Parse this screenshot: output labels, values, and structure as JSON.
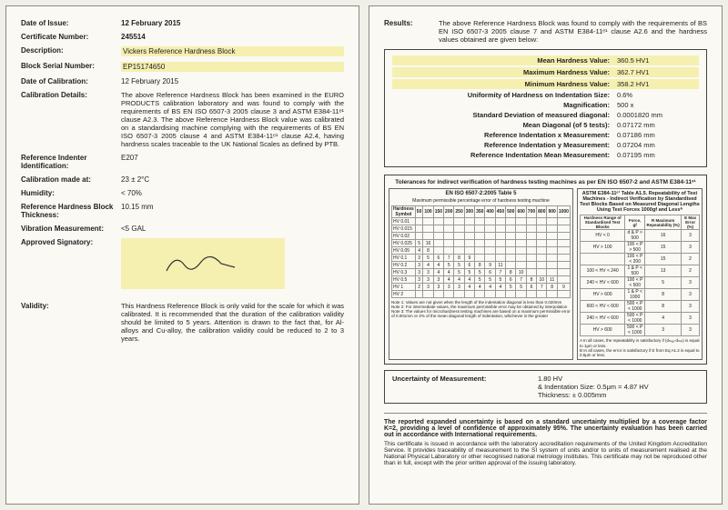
{
  "left": {
    "issue_lbl": "Date of Issue:",
    "issue_val": "12 February 2015",
    "cert_lbl": "Certificate Number:",
    "cert_val": "245514",
    "desc_lbl": "Description:",
    "desc_val": "Vickers Reference Hardness Block",
    "serial_lbl": "Block Serial Number:",
    "serial_val": "EP15174650",
    "calib_date_lbl": "Date of Calibration:",
    "calib_date_val": "12 February 2015",
    "calib_det_lbl": "Calibration Details:",
    "calib_det_val": "The above Reference Hardness Block has been examined in the EURO PRODUCTS calibration laboratory and was found to comply with the requirements of BS EN ISO 6507-3 2005 clause 3 and ASTM E384-11ᵉ¹ clause A2.3. The above Reference Hardness Block value was calibrated on a standardising machine complying with the requirements of BS EN ISO 6507-3 2005 clause 4 and ASTM E384-11ᵉ¹ clause A2.4, having hardness scales traceable to the UK National Scales as defined by PTB.",
    "indenter_lbl": "Reference Indenter Identification:",
    "indenter_val": "E207",
    "calib_at_lbl": "Calibration made at:",
    "calib_at_val": "23 ± 2°C",
    "humidity_lbl": "Humidity:",
    "humidity_val": "< 70%",
    "thick_lbl": "Reference Hardness Block Thickness:",
    "thick_val": "10.15 mm",
    "vib_lbl": "Vibration Measurement:",
    "vib_val": "<5 GAL",
    "sig_lbl": "Approved Signatory:",
    "valid_lbl": "Validity:",
    "valid_val": "This Hardness Reference Block is only valid for the scale for which it was calibrated. It is recommended that the duration of the calibration validity should be limited to 5 years. Attention is drawn to the fact that, for Al-alloys and Cu-alloy, the calibration validity could be reduced to 2 to 3 years."
  },
  "right": {
    "results_lbl": "Results:",
    "results_intro": "The above Reference Hardness Block was found to comply with the requirements of BS EN ISO 6507-3 2005 clause 7 and ASTM E384-11ᵉ¹ clause A2.6 and the hardness values obtained are given below:",
    "mean_lbl": "Mean Hardness Value:",
    "mean_val": "360.5   HV1",
    "max_lbl": "Maximum Hardness Value:",
    "max_val": "362.7   HV1",
    "min_lbl": "Minimum Hardness Value:",
    "min_val": "358.2   HV1",
    "uniform_lbl": "Uniformity of Hardness on Indentation Size:",
    "uniform_val": "0.6%",
    "mag_lbl": "Magnification:",
    "mag_val": "500 x",
    "stdev_lbl": "Standard Deviation of measured diagonal:",
    "stdev_val": "0.0001820 mm",
    "meandiag_lbl": "Mean Diagonal (of 5 tests):",
    "meandiag_val": "0.07172 mm",
    "refx_lbl": "Reference Indentation x Measurement:",
    "refx_val": "0.07186 mm",
    "refy_lbl": "Reference Indentation y Measurement:",
    "refy_val": "0.07204 mm",
    "refmean_lbl": "Reference Indentation Mean Measurement:",
    "refmean_val": "0.07195 mm",
    "tol_title": "Tolerances for indirect verification of hardness testing machines as per EN ISO 6507-2 and ASTM E384-11ᵉ¹",
    "tol_left_title": "EN ISO 6507-2:2005 Table 5",
    "tol_left_sub": "Maximum permissible percentage error of hardness testing machine",
    "tol_right_title": "ASTM E384-11ᵉ¹ Table A1.5. Repeatability of Test Machines - Indirect Verification by Standardised Test Blocks Based on Measured Diagonal Lengths Using Test Forces 1000gf and Lessᴬ",
    "tol_left_rows": [
      "HV 0.01",
      "HV 0.015",
      "HV 0.02",
      "HV 0.025",
      "HV 0.05",
      "HV 0.1",
      "HV 0.2",
      "HV 0.3",
      "HV 0.5",
      "HV 1",
      "HV 2"
    ],
    "tol_left_cols": [
      "50",
      "100",
      "150",
      "200",
      "250",
      "300",
      "350",
      "400",
      "450",
      "500",
      "600",
      "700",
      "800",
      "900",
      "1000"
    ],
    "tol_left_data": [
      [
        "",
        "",
        "",
        "",
        "",
        "",
        "",
        "",
        "",
        "",
        "",
        "",
        "",
        "",
        ""
      ],
      [
        "",
        "",
        "",
        "",
        "",
        "",
        "",
        "",
        "",
        "",
        "",
        "",
        "",
        "",
        ""
      ],
      [
        "",
        "",
        "",
        "",
        "",
        "",
        "",
        "",
        "",
        "",
        "",
        "",
        "",
        "",
        ""
      ],
      [
        "5",
        "16",
        "",
        "",
        "",
        "",
        "",
        "",
        "",
        "",
        "",
        "",
        "",
        "",
        ""
      ],
      [
        "4",
        "8",
        "",
        "",
        "",
        "",
        "",
        "",
        "",
        "",
        "",
        "",
        "",
        "",
        ""
      ],
      [
        "3",
        "5",
        "6",
        "7",
        "8",
        "9",
        "",
        "",
        "",
        "",
        "",
        "",
        "",
        "",
        ""
      ],
      [
        "3",
        "4",
        "4",
        "5",
        "5",
        "6",
        "8",
        "9",
        "11",
        "",
        "",
        "",
        "",
        "",
        ""
      ],
      [
        "3",
        "3",
        "4",
        "4",
        "5",
        "5",
        "5",
        "6",
        "7",
        "8",
        "10",
        "",
        "",
        "",
        ""
      ],
      [
        "3",
        "3",
        "3",
        "4",
        "4",
        "4",
        "5",
        "5",
        "5",
        "6",
        "7",
        "8",
        "10",
        "11",
        ""
      ],
      [
        "2",
        "3",
        "3",
        "3",
        "3",
        "4",
        "4",
        "4",
        "4",
        "5",
        "5",
        "6",
        "7",
        "8",
        "9"
      ],
      [
        "",
        "",
        "",
        "",
        "",
        "",
        "",
        "",
        "",
        "",
        "",
        "",
        "",
        "",
        ""
      ]
    ],
    "tol_left_notes": "Note 1: Values are not given when the length of the indentation diagonal is less than 0.020mm\nNote 2: For intermediate values, the maximum permissible error may be obtained by interpolation\nNote 3: The values for microhardness testing machines are based on a maximum permissible error of 0.001mm or 2% of the mean diagonal length of indentation, whichever is the greater",
    "tol_right_rows": [
      [
        "HV < 0",
        "d & P > 500",
        "16",
        "3"
      ],
      [
        "HV > 100",
        "100 < P > 500",
        "15",
        "3"
      ],
      [
        "",
        "100 < P < 200",
        "15",
        "2"
      ],
      [
        "100 < HV < 240",
        "1 & P < 500",
        "13",
        "2"
      ],
      [
        "240 < HV < 600",
        "100 < P < 500",
        "5",
        "3"
      ],
      [
        "HV > 600",
        "1 & P < 1000",
        "8",
        "3"
      ],
      [
        "600 < HV < 600",
        "500 < P < 1000",
        "8",
        "3"
      ],
      [
        "240 < HV < 600",
        "500 < P < 1000",
        "4",
        "3"
      ],
      [
        "HV > 600",
        "500 < P < 1000",
        "3",
        "3"
      ]
    ],
    "tol_right_cols": [
      "Hardness Range of Standardised Test Blocks",
      "Force, gf",
      "R Maximum Repeatability (%)",
      "E Max Error (%)"
    ],
    "tol_right_notes": "A In all cases, the repeatability is satisfactory if (dₘₐₓ-dₘᵢₙ) is equal to 1μm or less.\nB In all cases, the error is satisfactory if E from Eq A1.2 is equal to 0.5μm or less.",
    "uncert_lbl": "Uncertainty of Measurement:",
    "uncert_v1": "1.80 HV",
    "uncert_v2": "& Indentation Size: 0.5μm = 4.87 HV",
    "uncert_v3": "Thickness:  ± 0.005mm",
    "footer_main": "The reported expanded uncertainty is based on a standard uncertainty multiplied by a coverage factor K=2, providing a level of confidence of approximately 95%. The uncertainty evaluation has been carried out in accordance with International requirements.",
    "footer_sub": "This certificate is issued in accordance with the laboratory accreditation requirements of the United Kingdom Accreditation Service. It provides traceability of measurement to the SI system of units and/or to units of measurement realised at the National Physical Laboratory or other recognised national metrology institutes. This certificate may not be reproduced other than in full, except with the prior written approval of the issuing laboratory."
  }
}
